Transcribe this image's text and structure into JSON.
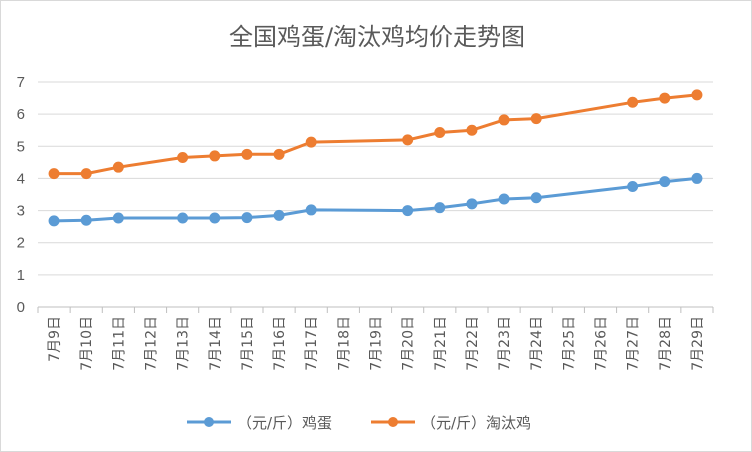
{
  "chart_data": {
    "type": "line",
    "title": "全国鸡蛋/淘汰鸡均价走势图",
    "xlabel": "",
    "ylabel": "",
    "ylim": [
      0,
      7
    ],
    "yticks": [
      "0",
      "1",
      "2",
      "3",
      "4",
      "5",
      "6",
      "7"
    ],
    "grid": true,
    "legend_position": "bottom",
    "categories": [
      "7月9日",
      "7月10日",
      "7月11日",
      "7月12日",
      "7月13日",
      "7月14日",
      "7月15日",
      "7月16日",
      "7月17日",
      "7月18日",
      "7月19日",
      "7月20日",
      "7月21日",
      "7月22日",
      "7月23日",
      "7月24日",
      "7月25日",
      "7月26日",
      "7月27日",
      "7月28日",
      "7月29日"
    ],
    "series": [
      {
        "name": "（元/斤）鸡蛋",
        "color": "#5b9bd5",
        "values": [
          2.68,
          2.7,
          2.77,
          null,
          2.77,
          2.77,
          2.78,
          2.85,
          3.02,
          null,
          null,
          3.0,
          3.09,
          3.21,
          3.36,
          3.4,
          null,
          null,
          3.75,
          3.9,
          4.0
        ]
      },
      {
        "name": "（元/斤）淘汰鸡",
        "color": "#ed7d31",
        "values": [
          4.15,
          4.15,
          4.35,
          null,
          4.65,
          4.7,
          4.75,
          4.75,
          5.13,
          null,
          null,
          5.2,
          5.43,
          5.5,
          5.82,
          5.86,
          null,
          null,
          6.37,
          6.5,
          6.6
        ]
      }
    ]
  }
}
